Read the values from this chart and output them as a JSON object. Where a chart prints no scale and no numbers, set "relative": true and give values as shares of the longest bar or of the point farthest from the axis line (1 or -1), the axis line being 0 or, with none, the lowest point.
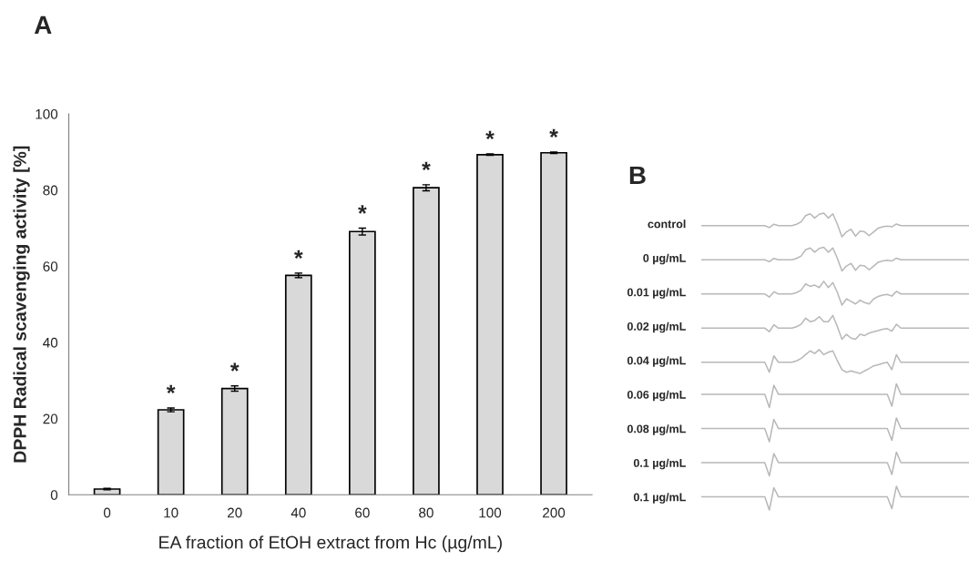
{
  "chart_data": [
    {
      "type": "bar",
      "title": "A",
      "xlabel": "EA fraction of EtOH extract from Hc (µg/mL)",
      "ylabel": "DPPH Radical scavenging activity [%]",
      "categories": [
        "0",
        "10",
        "20",
        "40",
        "60",
        "80",
        "100",
        "200"
      ],
      "values": [
        1.5,
        22.3,
        27.9,
        57.6,
        69.1,
        80.6,
        89.3,
        89.8
      ],
      "errors": [
        0.2,
        0.5,
        0.7,
        0.6,
        0.9,
        0.8,
        0.2,
        0.2
      ],
      "color": "#d9d9d9",
      "ylim": [
        0,
        100
      ],
      "yticks": [
        0,
        20,
        40,
        60,
        80,
        100
      ],
      "grid": false,
      "annotations": [
        {
          "text": "*",
          "x": "10",
          "y": 22.8
        },
        {
          "text": "*",
          "x": "20",
          "y": 28.6
        },
        {
          "text": "*",
          "x": "40",
          "y": 58.2
        },
        {
          "text": "*",
          "x": "60",
          "y": 70.0
        },
        {
          "text": "*",
          "x": "80",
          "y": 81.4
        },
        {
          "text": "*",
          "x": "100",
          "y": 89.5
        },
        {
          "text": "*",
          "x": "200",
          "y": 90.0
        }
      ]
    },
    {
      "type": "line",
      "relative": true,
      "title": "B",
      "ylabel": "control",
      "categories": [
        null,
        null,
        null,
        null,
        null,
        null,
        null,
        null,
        null,
        null,
        null,
        null,
        null,
        null,
        null,
        null,
        null,
        null,
        null,
        null,
        null,
        null,
        null,
        null,
        null,
        null,
        null,
        null,
        null,
        null,
        null,
        null,
        null,
        null,
        null,
        null,
        null,
        null,
        null,
        null,
        null,
        null,
        null,
        null,
        null,
        null,
        null,
        null,
        null,
        null,
        null,
        null,
        null,
        null,
        null,
        null,
        null,
        null,
        null,
        null
      ],
      "series": [
        {
          "color": "#b8b8b8",
          "values": [
            0.47,
            0.47,
            0.47,
            0.47,
            0.47,
            0.47,
            0.47,
            0.47,
            0.47,
            0.47,
            0.47,
            0.47,
            0.47,
            0.47,
            0.47,
            0.39,
            0.53,
            0.47,
            0.47,
            0.47,
            0.47,
            0.53,
            0.63,
            0.89,
            0.97,
            0.79,
            0.95,
            1,
            0.79,
            0.97,
            0.53,
            0,
            0.21,
            0.32,
            0.03,
            0.24,
            0.21,
            0.05,
            0.21,
            0.37,
            0.42,
            0.45,
            0.42,
            0.54,
            0.47,
            0.47,
            0.47,
            0.47,
            0.47,
            0.47,
            0.47,
            0.47,
            0.47,
            0.47,
            0.47,
            0.47,
            0.47,
            0.47,
            0.47,
            0.47
          ]
        }
      ]
    },
    {
      "type": "line",
      "relative": true,
      "ylabel": "0 µg/mL",
      "categories": [
        null,
        null,
        null,
        null,
        null,
        null,
        null,
        null,
        null,
        null,
        null,
        null,
        null,
        null,
        null,
        null,
        null,
        null,
        null,
        null,
        null,
        null,
        null,
        null,
        null,
        null,
        null,
        null,
        null,
        null,
        null,
        null,
        null,
        null,
        null,
        null,
        null,
        null,
        null,
        null,
        null,
        null,
        null,
        null,
        null,
        null,
        null,
        null,
        null,
        null,
        null,
        null,
        null,
        null,
        null,
        null,
        null,
        null,
        null,
        null
      ],
      "series": [
        {
          "color": "#b8b8b8",
          "values": [
            0.47,
            0.47,
            0.47,
            0.47,
            0.47,
            0.47,
            0.47,
            0.47,
            0.47,
            0.47,
            0.47,
            0.47,
            0.47,
            0.47,
            0.47,
            0.39,
            0.53,
            0.47,
            0.47,
            0.47,
            0.47,
            0.53,
            0.63,
            0.89,
            0.97,
            0.79,
            0.95,
            1,
            0.79,
            0.97,
            0.53,
            0,
            0.21,
            0.32,
            0.03,
            0.24,
            0.21,
            0.05,
            0.21,
            0.37,
            0.42,
            0.45,
            0.42,
            0.54,
            0.47,
            0.47,
            0.47,
            0.47,
            0.47,
            0.47,
            0.47,
            0.47,
            0.47,
            0.47,
            0.47,
            0.47,
            0.47,
            0.47,
            0.47,
            0.47
          ]
        }
      ]
    },
    {
      "type": "line",
      "relative": true,
      "ylabel": "0.01 µg/mL",
      "categories": [
        null,
        null,
        null,
        null,
        null,
        null,
        null,
        null,
        null,
        null,
        null,
        null,
        null,
        null,
        null,
        null,
        null,
        null,
        null,
        null,
        null,
        null,
        null,
        null,
        null,
        null,
        null,
        null,
        null,
        null,
        null,
        null,
        null,
        null,
        null,
        null,
        null,
        null,
        null,
        null,
        null,
        null,
        null,
        null,
        null,
        null,
        null,
        null,
        null,
        null,
        null,
        null,
        null,
        null,
        null,
        null,
        null,
        null,
        null,
        null
      ],
      "series": [
        {
          "color": "#b8b8b8",
          "values": [
            0.47,
            0.47,
            0.47,
            0.47,
            0.47,
            0.47,
            0.47,
            0.47,
            0.47,
            0.47,
            0.47,
            0.47,
            0.47,
            0.47,
            0.47,
            0.34,
            0.56,
            0.47,
            0.47,
            0.47,
            0.47,
            0.53,
            0.63,
            0.89,
            0.79,
            0.84,
            0.74,
            1,
            0.74,
            0.95,
            0.53,
            0,
            0.26,
            0.16,
            0.05,
            0.21,
            0.11,
            0.05,
            0.26,
            0.37,
            0.42,
            0.45,
            0.38,
            0.58,
            0.47,
            0.47,
            0.47,
            0.47,
            0.47,
            0.47,
            0.47,
            0.47,
            0.47,
            0.47,
            0.47,
            0.47,
            0.47,
            0.47,
            0.47,
            0.47
          ]
        }
      ]
    },
    {
      "type": "line",
      "relative": true,
      "ylabel": "0.02 µg/mL",
      "categories": [
        null,
        null,
        null,
        null,
        null,
        null,
        null,
        null,
        null,
        null,
        null,
        null,
        null,
        null,
        null,
        null,
        null,
        null,
        null,
        null,
        null,
        null,
        null,
        null,
        null,
        null,
        null,
        null,
        null,
        null,
        null,
        null,
        null,
        null,
        null,
        null,
        null,
        null,
        null,
        null,
        null,
        null,
        null,
        null,
        null,
        null,
        null,
        null,
        null,
        null,
        null,
        null,
        null,
        null,
        null,
        null,
        null,
        null,
        null,
        null
      ],
      "series": [
        {
          "color": "#b8b8b8",
          "values": [
            0.47,
            0.47,
            0.47,
            0.47,
            0.47,
            0.47,
            0.47,
            0.47,
            0.47,
            0.47,
            0.47,
            0.47,
            0.47,
            0.47,
            0.47,
            0.32,
            0.61,
            0.47,
            0.47,
            0.47,
            0.47,
            0.53,
            0.63,
            0.89,
            0.74,
            0.79,
            0.95,
            0.74,
            0.74,
            1,
            0.53,
            0,
            0.21,
            0.05,
            0,
            0.21,
            0.16,
            0.26,
            0.32,
            0.37,
            0.42,
            0.45,
            0.34,
            0.63,
            0.47,
            0.47,
            0.47,
            0.47,
            0.47,
            0.47,
            0.47,
            0.47,
            0.47,
            0.47,
            0.47,
            0.47,
            0.47,
            0.47,
            0.47,
            0.47
          ]
        }
      ]
    },
    {
      "type": "line",
      "relative": true,
      "ylabel": "0.04 µg/mL",
      "categories": [
        null,
        null,
        null,
        null,
        null,
        null,
        null,
        null,
        null,
        null,
        null,
        null,
        null,
        null,
        null,
        null,
        null,
        null,
        null,
        null,
        null,
        null,
        null,
        null,
        null,
        null,
        null,
        null,
        null,
        null,
        null,
        null,
        null,
        null,
        null,
        null,
        null,
        null,
        null,
        null,
        null,
        null,
        null,
        null,
        null,
        null,
        null,
        null,
        null,
        null,
        null,
        null,
        null,
        null,
        null,
        null,
        null,
        null,
        null,
        null
      ],
      "series": [
        {
          "color": "#b8b8b8",
          "values": [
            0.47,
            0.47,
            0.47,
            0.47,
            0.47,
            0.47,
            0.47,
            0.47,
            0.47,
            0.47,
            0.47,
            0.47,
            0.47,
            0.47,
            0.47,
            0.05,
            0.74,
            0.47,
            0.47,
            0.47,
            0.47,
            0.53,
            0.63,
            0.79,
            0.95,
            0.84,
            1,
            0.79,
            0.89,
            0.95,
            0.53,
            0.16,
            0.05,
            0.11,
            0.05,
            0,
            0.11,
            0.21,
            0.32,
            0.37,
            0.42,
            0.47,
            0.16,
            0.79,
            0.47,
            0.47,
            0.47,
            0.47,
            0.47,
            0.47,
            0.47,
            0.47,
            0.47,
            0.47,
            0.47,
            0.47,
            0.47,
            0.47,
            0.47,
            0.47
          ]
        }
      ]
    },
    {
      "type": "line",
      "relative": true,
      "ylabel": "0.06 µg/mL",
      "categories": [
        null,
        null,
        null,
        null,
        null,
        null,
        null,
        null,
        null,
        null,
        null,
        null,
        null,
        null,
        null,
        null,
        null,
        null,
        null,
        null,
        null,
        null,
        null,
        null,
        null,
        null,
        null,
        null,
        null,
        null,
        null,
        null,
        null,
        null,
        null,
        null,
        null,
        null,
        null,
        null,
        null,
        null,
        null,
        null,
        null,
        null,
        null,
        null,
        null,
        null,
        null,
        null,
        null,
        null,
        null,
        null,
        null,
        null,
        null,
        null
      ],
      "series": [
        {
          "color": "#b8b8b8",
          "values": [
            0.56,
            0.56,
            0.56,
            0.56,
            0.56,
            0.56,
            0.56,
            0.56,
            0.56,
            0.56,
            0.56,
            0.56,
            0.56,
            0.56,
            0.56,
            0,
            0.94,
            0.56,
            0.56,
            0.56,
            0.56,
            0.56,
            0.56,
            0.56,
            0.56,
            0.56,
            0.56,
            0.56,
            0.56,
            0.56,
            0.56,
            0.56,
            0.56,
            0.56,
            0.56,
            0.56,
            0.56,
            0.56,
            0.56,
            0.56,
            0.56,
            0.56,
            0.06,
            1,
            0.56,
            0.56,
            0.56,
            0.56,
            0.56,
            0.56,
            0.56,
            0.56,
            0.56,
            0.56,
            0.56,
            0.56,
            0.56,
            0.56,
            0.56,
            0.56
          ]
        }
      ]
    },
    {
      "type": "line",
      "relative": true,
      "ylabel": "0.08 µg/mL",
      "categories": [
        null,
        null,
        null,
        null,
        null,
        null,
        null,
        null,
        null,
        null,
        null,
        null,
        null,
        null,
        null,
        null,
        null,
        null,
        null,
        null,
        null,
        null,
        null,
        null,
        null,
        null,
        null,
        null,
        null,
        null,
        null,
        null,
        null,
        null,
        null,
        null,
        null,
        null,
        null,
        null,
        null,
        null,
        null,
        null,
        null,
        null,
        null,
        null,
        null,
        null,
        null,
        null,
        null,
        null,
        null,
        null,
        null,
        null,
        null,
        null
      ],
      "series": [
        {
          "color": "#b8b8b8",
          "values": [
            0.56,
            0.56,
            0.56,
            0.56,
            0.56,
            0.56,
            0.56,
            0.56,
            0.56,
            0.56,
            0.56,
            0.56,
            0.56,
            0.56,
            0.56,
            0,
            0.94,
            0.56,
            0.56,
            0.56,
            0.56,
            0.56,
            0.56,
            0.56,
            0.56,
            0.56,
            0.56,
            0.56,
            0.56,
            0.56,
            0.56,
            0.56,
            0.56,
            0.56,
            0.56,
            0.56,
            0.56,
            0.56,
            0.56,
            0.56,
            0.56,
            0.56,
            0.06,
            1,
            0.56,
            0.56,
            0.56,
            0.56,
            0.56,
            0.56,
            0.56,
            0.56,
            0.56,
            0.56,
            0.56,
            0.56,
            0.56,
            0.56,
            0.56,
            0.56
          ]
        }
      ]
    },
    {
      "type": "line",
      "relative": true,
      "ylabel": "0.1 µg/mL",
      "categories": [
        null,
        null,
        null,
        null,
        null,
        null,
        null,
        null,
        null,
        null,
        null,
        null,
        null,
        null,
        null,
        null,
        null,
        null,
        null,
        null,
        null,
        null,
        null,
        null,
        null,
        null,
        null,
        null,
        null,
        null,
        null,
        null,
        null,
        null,
        null,
        null,
        null,
        null,
        null,
        null,
        null,
        null,
        null,
        null,
        null,
        null,
        null,
        null,
        null,
        null,
        null,
        null,
        null,
        null,
        null,
        null,
        null,
        null,
        null,
        null
      ],
      "series": [
        {
          "color": "#b8b8b8",
          "values": [
            0.56,
            0.56,
            0.56,
            0.56,
            0.56,
            0.56,
            0.56,
            0.56,
            0.56,
            0.56,
            0.56,
            0.56,
            0.56,
            0.56,
            0.56,
            0,
            0.94,
            0.56,
            0.56,
            0.56,
            0.56,
            0.56,
            0.56,
            0.56,
            0.56,
            0.56,
            0.56,
            0.56,
            0.56,
            0.56,
            0.56,
            0.56,
            0.56,
            0.56,
            0.56,
            0.56,
            0.56,
            0.56,
            0.56,
            0.56,
            0.56,
            0.56,
            0.06,
            1,
            0.56,
            0.56,
            0.56,
            0.56,
            0.56,
            0.56,
            0.56,
            0.56,
            0.56,
            0.56,
            0.56,
            0.56,
            0.56,
            0.56,
            0.56,
            0.56
          ]
        }
      ]
    },
    {
      "type": "line",
      "relative": true,
      "ylabel": "0.1 µg/mL",
      "categories": [
        null,
        null,
        null,
        null,
        null,
        null,
        null,
        null,
        null,
        null,
        null,
        null,
        null,
        null,
        null,
        null,
        null,
        null,
        null,
        null,
        null,
        null,
        null,
        null,
        null,
        null,
        null,
        null,
        null,
        null,
        null,
        null,
        null,
        null,
        null,
        null,
        null,
        null,
        null,
        null,
        null,
        null,
        null,
        null,
        null,
        null,
        null,
        null,
        null,
        null,
        null,
        null,
        null,
        null,
        null,
        null,
        null,
        null,
        null,
        null
      ],
      "series": [
        {
          "color": "#b8b8b8",
          "values": [
            0.56,
            0.56,
            0.56,
            0.56,
            0.56,
            0.56,
            0.56,
            0.56,
            0.56,
            0.56,
            0.56,
            0.56,
            0.56,
            0.56,
            0.56,
            0,
            0.94,
            0.56,
            0.56,
            0.56,
            0.56,
            0.56,
            0.56,
            0.56,
            0.56,
            0.56,
            0.56,
            0.56,
            0.56,
            0.56,
            0.56,
            0.56,
            0.56,
            0.56,
            0.56,
            0.56,
            0.56,
            0.56,
            0.56,
            0.56,
            0.56,
            0.56,
            0.06,
            1,
            0.56,
            0.56,
            0.56,
            0.56,
            0.56,
            0.56,
            0.56,
            0.56,
            0.56,
            0.56,
            0.56,
            0.56,
            0.56,
            0.56,
            0.56,
            0.56
          ]
        }
      ]
    }
  ]
}
